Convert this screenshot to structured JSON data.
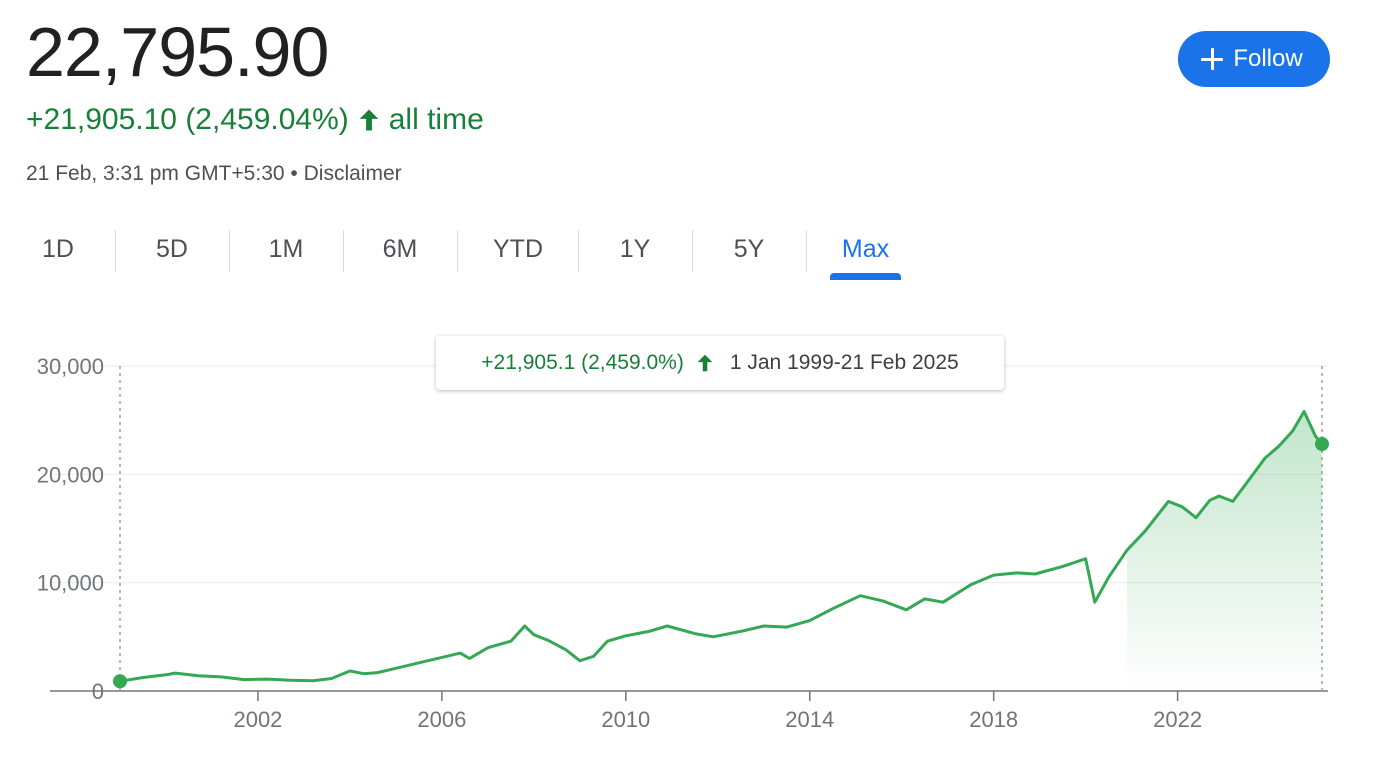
{
  "quote": {
    "price": "22,795.90",
    "change": "+21,905.10 (2,459.04%)",
    "period": "all time",
    "timestamp": "21 Feb, 3:31 pm GMT+5:30",
    "separator": "•",
    "disclaimer": "Disclaimer",
    "follow_label": "Follow"
  },
  "tabs": [
    {
      "label": "1D"
    },
    {
      "label": "5D"
    },
    {
      "label": "1M"
    },
    {
      "label": "6M"
    },
    {
      "label": "YTD"
    },
    {
      "label": "1Y"
    },
    {
      "label": "5Y"
    },
    {
      "label": "Max",
      "active": true
    }
  ],
  "tooltip": {
    "change": "+21,905.1 (2,459.0%)",
    "range": "1 Jan 1999-21 Feb 2025"
  },
  "colors": {
    "line": "#34a853",
    "positive_text": "#188038",
    "accent": "#1a73e8"
  },
  "chart_data": {
    "type": "area",
    "title": "",
    "xlabel": "",
    "ylabel": "",
    "y_ticks": [
      0,
      10000,
      20000,
      30000
    ],
    "y_tick_labels": [
      "0",
      "10,000",
      "20,000",
      "30,000"
    ],
    "x_ticks": [
      2002,
      2006,
      2010,
      2014,
      2018,
      2022
    ],
    "x_tick_labels": [
      "2002",
      "2006",
      "2010",
      "2014",
      "2018",
      "2022"
    ],
    "xlim": [
      1999.0,
      2025.14
    ],
    "ylim": [
      0,
      30000
    ],
    "grid": true,
    "series": [
      {
        "x": [
          1999.0,
          1999.5,
          2000.0,
          2000.2,
          2000.7,
          2001.2,
          2001.7,
          2002.2,
          2002.7,
          2003.2,
          2003.6,
          2004.0,
          2004.3,
          2004.6,
          2005.0,
          2005.5,
          2006.0,
          2006.4,
          2006.6,
          2007.0,
          2007.5,
          2007.8,
          2008.0,
          2008.3,
          2008.7,
          2009.0,
          2009.3,
          2009.6,
          2010.0,
          2010.5,
          2010.9,
          2011.5,
          2011.9,
          2012.5,
          2013.0,
          2013.5,
          2014.0,
          2014.5,
          2015.1,
          2015.6,
          2016.1,
          2016.5,
          2016.9,
          2017.5,
          2018.0,
          2018.5,
          2018.9,
          2019.5,
          2020.0,
          2020.2,
          2020.5,
          2020.9,
          2021.3,
          2021.8,
          2022.1,
          2022.4,
          2022.7,
          2022.9,
          2023.2,
          2023.5,
          2023.9,
          2024.2,
          2024.5,
          2024.75,
          2025.0,
          2025.14
        ],
        "y": [
          900,
          1250,
          1500,
          1650,
          1400,
          1300,
          1050,
          1100,
          1000,
          950,
          1150,
          1850,
          1600,
          1700,
          2100,
          2600,
          3100,
          3500,
          3000,
          4000,
          4600,
          6000,
          5200,
          4700,
          3800,
          2800,
          3200,
          4600,
          5100,
          5500,
          6000,
          5300,
          5000,
          5500,
          6000,
          5900,
          6500,
          7600,
          8800,
          8300,
          7500,
          8500,
          8200,
          9800,
          10700,
          10900,
          10800,
          11500,
          12200,
          8200,
          10500,
          13000,
          14800,
          17500,
          17000,
          16000,
          17600,
          18000,
          17500,
          19200,
          21500,
          22600,
          24000,
          25800,
          23500,
          22795.9
        ]
      }
    ],
    "markers": [
      {
        "x": 1999.0,
        "y": 900
      },
      {
        "x": 2025.14,
        "y": 22795.9
      }
    ]
  }
}
